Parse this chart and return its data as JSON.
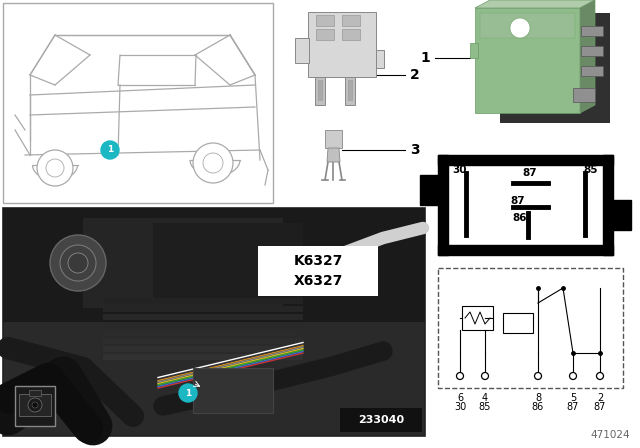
{
  "background_color": "#ffffff",
  "teal_color": "#1BB8C4",
  "relay_green": "#8fbc8a",
  "relay_green_dark": "#6a9966",
  "diagram_id": "471024",
  "photo_number": "233040",
  "k_label": "K6327",
  "x_label": "X6327",
  "item2": "2",
  "item3": "3",
  "item1": "1",
  "pin_top": [
    "6",
    "4",
    "8",
    "5",
    "2"
  ],
  "pin_bot": [
    "30",
    "85",
    "86",
    "87",
    "87"
  ],
  "pd_labels": [
    "87",
    "30",
    "87",
    "85",
    "86"
  ]
}
